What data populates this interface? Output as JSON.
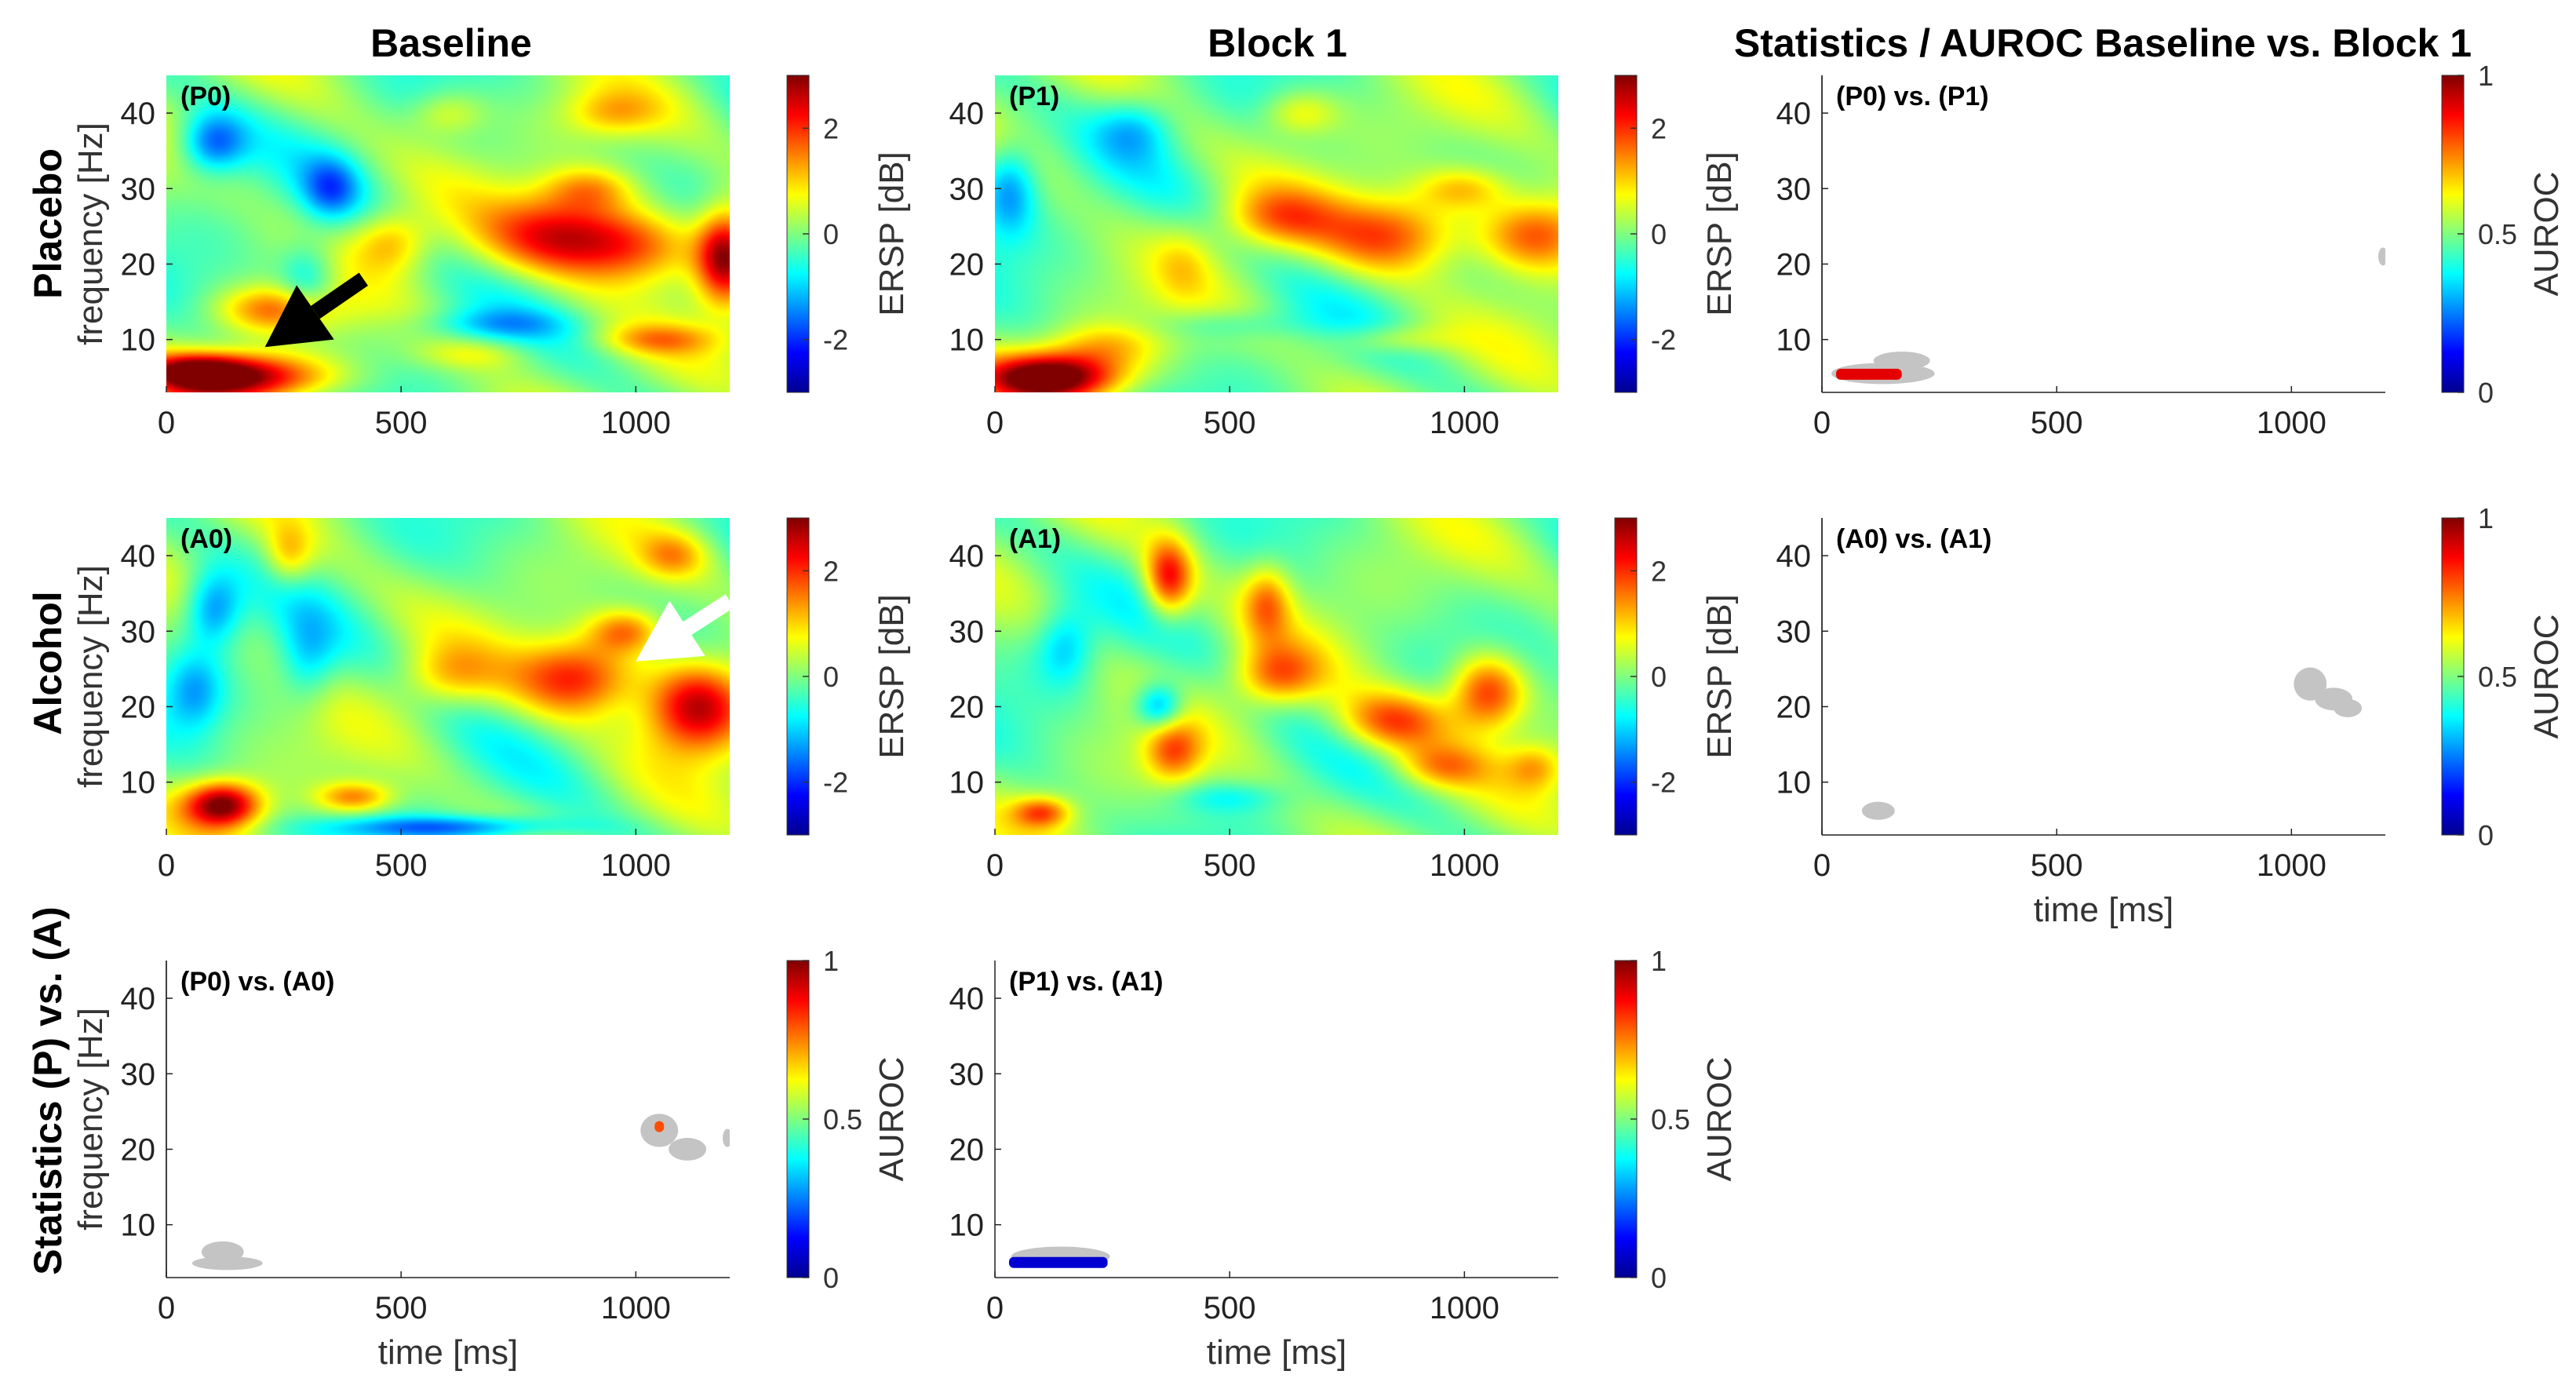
{
  "figure": {
    "column_titles": [
      "Baseline",
      "Block 1",
      "Statistics / AUROC Baseline vs. Block 1"
    ],
    "row_titles": [
      "Placebo",
      "Alcohol",
      "Statistics (P) vs. (A)"
    ],
    "colors": {
      "nonsig_gray": "#c4c4c4",
      "colormap": "jet",
      "arrow_black": "#000000",
      "arrow_white": "#ffffff"
    }
  },
  "chart_data": [
    {
      "panel": "(P0)",
      "type": "heatmap",
      "xlabel": "",
      "ylabel": "frequency [Hz]",
      "xlim": [
        0,
        1200
      ],
      "ylim": [
        3,
        45
      ],
      "xticks": [
        0,
        500,
        1000
      ],
      "yticks": [
        10,
        20,
        30,
        40
      ],
      "colorbar": {
        "label": "ERSP [dB]",
        "range": [
          -3,
          3
        ],
        "ticks": [
          -2,
          0,
          2
        ]
      },
      "blobs": [
        [
          150,
          5,
          180,
          3,
          3.0
        ],
        [
          60,
          6,
          100,
          2,
          1.5
        ],
        [
          850,
          24,
          160,
          5,
          2.2
        ],
        [
          1000,
          22,
          140,
          5,
          1.6
        ],
        [
          1190,
          21,
          60,
          6,
          2.8
        ],
        [
          900,
          30,
          100,
          3,
          1.2
        ],
        [
          480,
          23,
          80,
          4,
          1.2
        ],
        [
          230,
          14,
          120,
          3,
          1.5
        ],
        [
          100,
          36,
          70,
          4,
          -1.7
        ],
        [
          350,
          30,
          60,
          4,
          -1.3
        ],
        [
          300,
          18,
          60,
          5,
          -1.0
        ],
        [
          700,
          12,
          150,
          2,
          -0.8
        ],
        [
          1050,
          10,
          120,
          2,
          1.0
        ],
        [
          600,
          40,
          80,
          3,
          0.8
        ],
        [
          950,
          40,
          100,
          3,
          0.9
        ],
        [
          650,
          8,
          120,
          2,
          0.6
        ]
      ],
      "annotation": {
        "type": "arrow",
        "color": "black",
        "from": [
          420,
          18
        ],
        "to": [
          210,
          9
        ]
      }
    },
    {
      "panel": "(P1)",
      "type": "heatmap",
      "xlabel": "",
      "ylabel": "",
      "xlim": [
        0,
        1200
      ],
      "ylim": [
        3,
        45
      ],
      "xticks": [
        0,
        500,
        1000
      ],
      "yticks": [
        10,
        20,
        30,
        40
      ],
      "colorbar": {
        "label": "ERSP [dB]",
        "range": [
          -3,
          3
        ],
        "ticks": [
          -2,
          0,
          2
        ]
      },
      "blobs": [
        [
          120,
          5,
          140,
          3,
          3.4
        ],
        [
          230,
          9,
          120,
          3,
          1.0
        ],
        [
          600,
          26,
          120,
          4,
          1.3
        ],
        [
          850,
          24,
          150,
          5,
          1.8
        ],
        [
          1150,
          24,
          120,
          5,
          2.0
        ],
        [
          1000,
          30,
          100,
          3,
          1.2
        ],
        [
          30,
          30,
          60,
          6,
          -1.4
        ],
        [
          300,
          38,
          80,
          4,
          -0.9
        ],
        [
          500,
          12,
          150,
          2,
          -0.5
        ],
        [
          850,
          10,
          120,
          2,
          0.8
        ],
        [
          650,
          40,
          80,
          3,
          0.9
        ],
        [
          400,
          20,
          60,
          5,
          0.5
        ]
      ]
    },
    {
      "panel": "(P0) vs. (P1)",
      "type": "heatmap",
      "xlabel": "",
      "ylabel": "",
      "xlim": [
        0,
        1200
      ],
      "ylim": [
        3,
        45
      ],
      "xticks": [
        0,
        500,
        1000
      ],
      "yticks": [
        10,
        20,
        30,
        40
      ],
      "colorbar": {
        "label": "AUROC",
        "range": [
          0,
          1
        ],
        "ticks": [
          0,
          0.5,
          1
        ]
      },
      "gray_regions": [
        [
          130,
          5.5,
          110,
          1.4
        ],
        [
          170,
          7.2,
          60,
          1.2
        ],
        [
          1195,
          21,
          10,
          1.2
        ]
      ],
      "sig_regions": [
        {
          "x": [
            30,
            170
          ],
          "y": 5.4,
          "auroc": 0.9
        }
      ]
    },
    {
      "panel": "(A0)",
      "type": "heatmap",
      "xlabel": "",
      "ylabel": "frequency [Hz]",
      "xlim": [
        0,
        1200
      ],
      "ylim": [
        3,
        45
      ],
      "xticks": [
        0,
        500,
        1000
      ],
      "yticks": [
        10,
        20,
        30,
        40
      ],
      "colorbar": {
        "label": "ERSP [dB]",
        "range": [
          -3,
          3
        ],
        "ticks": [
          -2,
          0,
          2
        ]
      },
      "blobs": [
        [
          120,
          7,
          80,
          3,
          3.0
        ],
        [
          400,
          8,
          80,
          2,
          1.5
        ],
        [
          880,
          24,
          130,
          5,
          2.2
        ],
        [
          1130,
          20,
          110,
          6,
          2.8
        ],
        [
          980,
          30,
          80,
          3,
          1.6
        ],
        [
          600,
          24,
          100,
          4,
          1.0
        ],
        [
          260,
          40,
          50,
          4,
          1.0
        ],
        [
          100,
          33,
          60,
          5,
          -1.5
        ],
        [
          300,
          26,
          60,
          6,
          -0.9
        ],
        [
          600,
          4,
          250,
          1.5,
          -1.5
        ],
        [
          1080,
          40,
          70,
          3,
          1.0
        ],
        [
          60,
          22,
          60,
          5,
          -1.0
        ]
      ],
      "annotation": {
        "type": "arrow",
        "color": "white",
        "from": [
          1200,
          34
        ],
        "to": [
          1000,
          26
        ]
      }
    },
    {
      "panel": "(A1)",
      "type": "heatmap",
      "xlabel": "",
      "ylabel": "",
      "xlim": [
        0,
        1200
      ],
      "ylim": [
        3,
        45
      ],
      "xticks": [
        0,
        500,
        1000
      ],
      "yticks": [
        10,
        20,
        30,
        40
      ],
      "colorbar": {
        "label": "ERSP [dB]",
        "range": [
          -3,
          3
        ],
        "ticks": [
          -2,
          0,
          2
        ]
      },
      "blobs": [
        [
          370,
          37,
          50,
          5,
          2.2
        ],
        [
          580,
          34,
          50,
          5,
          1.3
        ],
        [
          600,
          24,
          90,
          4,
          1.6
        ],
        [
          850,
          18,
          120,
          4,
          1.8
        ],
        [
          1050,
          22,
          80,
          5,
          2.2
        ],
        [
          950,
          12,
          100,
          3,
          1.2
        ],
        [
          1150,
          12,
          60,
          3,
          1.0
        ],
        [
          100,
          6,
          60,
          2,
          1.6
        ],
        [
          380,
          14,
          60,
          4,
          1.5
        ],
        [
          350,
          20,
          50,
          3,
          -1.6
        ],
        [
          150,
          28,
          60,
          5,
          -1.0
        ],
        [
          500,
          8,
          120,
          2,
          -0.6
        ]
      ]
    },
    {
      "panel": "(A0) vs. (A1)",
      "type": "heatmap",
      "xlabel": "time [ms]",
      "ylabel": "",
      "xlim": [
        0,
        1200
      ],
      "ylim": [
        3,
        45
      ],
      "xticks": [
        0,
        500,
        1000
      ],
      "yticks": [
        10,
        20,
        30,
        40
      ],
      "colorbar": {
        "label": "AUROC",
        "range": [
          0,
          1
        ],
        "ticks": [
          0,
          0.5,
          1
        ]
      },
      "gray_regions": [
        [
          120,
          6.2,
          35,
          1.2
        ],
        [
          1040,
          23,
          35,
          2.2
        ],
        [
          1090,
          21,
          40,
          1.5
        ],
        [
          1120,
          19.8,
          30,
          1.2
        ]
      ],
      "sig_regions": []
    },
    {
      "panel": "(P0) vs. (A0)",
      "type": "heatmap",
      "xlabel": "time [ms]",
      "ylabel": "frequency [Hz]",
      "xlim": [
        0,
        1200
      ],
      "ylim": [
        3,
        45
      ],
      "xticks": [
        0,
        500,
        1000
      ],
      "yticks": [
        10,
        20,
        30,
        40
      ],
      "colorbar": {
        "label": "AUROC",
        "range": [
          0,
          1
        ],
        "ticks": [
          0,
          0.5,
          1
        ]
      },
      "gray_regions": [
        [
          120,
          6.4,
          45,
          1.4
        ],
        [
          130,
          4.9,
          75,
          0.9
        ],
        [
          1050,
          22.5,
          40,
          2.2
        ],
        [
          1110,
          20,
          40,
          1.5
        ],
        [
          1195,
          21.5,
          10,
          1.2
        ]
      ],
      "sig_regions": [
        {
          "x": [
            1040,
            1060
          ],
          "y": 23,
          "auroc": 0.8
        }
      ]
    },
    {
      "panel": "(P1) vs. (A1)",
      "type": "heatmap",
      "xlabel": "time [ms]",
      "ylabel": "",
      "xlim": [
        0,
        1200
      ],
      "ylim": [
        3,
        45
      ],
      "xticks": [
        0,
        500,
        1000
      ],
      "yticks": [
        10,
        20,
        30,
        40
      ],
      "colorbar": {
        "label": "AUROC",
        "range": [
          0,
          1
        ],
        "ticks": [
          0,
          0.5,
          1
        ]
      },
      "gray_regions": [
        [
          140,
          5.8,
          105,
          1.3
        ]
      ],
      "sig_regions": [
        {
          "x": [
            30,
            240
          ],
          "y": 5.0,
          "auroc": 0.08
        }
      ]
    }
  ]
}
